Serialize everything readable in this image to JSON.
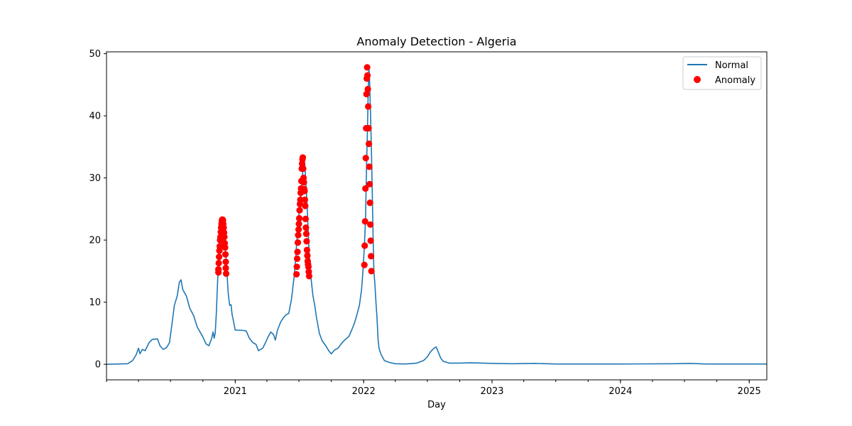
{
  "chart_data": {
    "type": "line",
    "title": "Anomaly Detection - Algeria",
    "xlabel": "Day",
    "ylabel": "",
    "xlim": [
      "2020-01-01",
      "2025-02-20"
    ],
    "ylim": [
      -2.5,
      50.3
    ],
    "x_ticks": [
      "2021-01-01",
      "2022-01-01",
      "2023-01-01",
      "2024-01-01",
      "2025-01-01"
    ],
    "x_tick_labels": [
      "2021",
      "2022",
      "2023",
      "2024",
      "2025"
    ],
    "y_ticks": [
      0,
      10,
      20,
      30,
      40,
      50
    ],
    "y_tick_labels": [
      "0",
      "10",
      "20",
      "30",
      "40",
      "50"
    ],
    "grid": false,
    "legend_position": "top-right",
    "legend": [
      {
        "label": "Normal",
        "kind": "line",
        "color": "#1f77b4"
      },
      {
        "label": "Anomaly",
        "kind": "marker",
        "color": "#ff0000"
      }
    ],
    "series": [
      {
        "name": "Normal",
        "kind": "line",
        "color": "#1f77b4",
        "points": [
          [
            "2020-01-01",
            0
          ],
          [
            "2020-03-01",
            0.1
          ],
          [
            "2020-03-15",
            0.6
          ],
          [
            "2020-03-25",
            1.5
          ],
          [
            "2020-04-01",
            2.6
          ],
          [
            "2020-04-05",
            1.7
          ],
          [
            "2020-04-12",
            2.4
          ],
          [
            "2020-04-20",
            2.2
          ],
          [
            "2020-05-01",
            3.5
          ],
          [
            "2020-05-10",
            4.0
          ],
          [
            "2020-05-25",
            4.1
          ],
          [
            "2020-06-01",
            3.0
          ],
          [
            "2020-06-10",
            2.4
          ],
          [
            "2020-06-20",
            2.7
          ],
          [
            "2020-06-28",
            3.5
          ],
          [
            "2020-07-05",
            6.5
          ],
          [
            "2020-07-12",
            9.5
          ],
          [
            "2020-07-20",
            11.0
          ],
          [
            "2020-07-26",
            13.2
          ],
          [
            "2020-07-31",
            13.6
          ],
          [
            "2020-08-05",
            12.0
          ],
          [
            "2020-08-15",
            11.0
          ],
          [
            "2020-08-25",
            9.0
          ],
          [
            "2020-09-05",
            7.8
          ],
          [
            "2020-09-15",
            6.0
          ],
          [
            "2020-09-30",
            4.5
          ],
          [
            "2020-10-10",
            3.3
          ],
          [
            "2020-10-18",
            3.0
          ],
          [
            "2020-10-25",
            4.0
          ],
          [
            "2020-10-30",
            5.2
          ],
          [
            "2020-11-02",
            4.2
          ],
          [
            "2020-11-05",
            5.0
          ],
          [
            "2020-11-08",
            8.0
          ],
          [
            "2020-11-13",
            15.0
          ],
          [
            "2020-11-16",
            17.5
          ],
          [
            "2020-11-20",
            20.5
          ],
          [
            "2020-11-24",
            23.0
          ],
          [
            "2020-11-27",
            23.3
          ],
          [
            "2020-12-01",
            22.0
          ],
          [
            "2020-12-04",
            19.0
          ],
          [
            "2020-12-08",
            15.0
          ],
          [
            "2020-12-12",
            11.5
          ],
          [
            "2020-12-16",
            9.5
          ],
          [
            "2020-12-20",
            9.6
          ],
          [
            "2020-12-23",
            8.0
          ],
          [
            "2020-12-25",
            7.5
          ],
          [
            "2021-01-01",
            5.5
          ],
          [
            "2021-01-15",
            5.5
          ],
          [
            "2021-02-01",
            5.4
          ],
          [
            "2021-02-10",
            4.2
          ],
          [
            "2021-02-20",
            3.5
          ],
          [
            "2021-03-01",
            3.2
          ],
          [
            "2021-03-08",
            2.2
          ],
          [
            "2021-03-20",
            2.6
          ],
          [
            "2021-03-28",
            3.5
          ],
          [
            "2021-04-05",
            4.5
          ],
          [
            "2021-04-12",
            5.2
          ],
          [
            "2021-04-20",
            4.8
          ],
          [
            "2021-04-25",
            3.9
          ],
          [
            "2021-05-01",
            5.5
          ],
          [
            "2021-05-10",
            6.8
          ],
          [
            "2021-05-18",
            7.5
          ],
          [
            "2021-05-26",
            8.0
          ],
          [
            "2021-06-02",
            8.2
          ],
          [
            "2021-06-10",
            10.5
          ],
          [
            "2021-06-18",
            14.5
          ],
          [
            "2021-06-22",
            17.5
          ],
          [
            "2021-06-26",
            20.5
          ],
          [
            "2021-06-30",
            23.5
          ],
          [
            "2021-07-04",
            26.0
          ],
          [
            "2021-07-08",
            28.0
          ],
          [
            "2021-07-12",
            31.0
          ],
          [
            "2021-07-15",
            33.3
          ],
          [
            "2021-07-18",
            32.0
          ],
          [
            "2021-07-21",
            29.0
          ],
          [
            "2021-07-24",
            26.0
          ],
          [
            "2021-07-27",
            22.0
          ],
          [
            "2021-07-30",
            18.0
          ],
          [
            "2021-08-02",
            15.0
          ],
          [
            "2021-08-06",
            13.0
          ],
          [
            "2021-08-10",
            11.0
          ],
          [
            "2021-08-15",
            9.5
          ],
          [
            "2021-08-20",
            7.5
          ],
          [
            "2021-08-28",
            5.0
          ],
          [
            "2021-09-05",
            3.8
          ],
          [
            "2021-09-15",
            3.0
          ],
          [
            "2021-09-25",
            2.1
          ],
          [
            "2021-10-01",
            1.7
          ],
          [
            "2021-10-10",
            2.3
          ],
          [
            "2021-10-20",
            2.6
          ],
          [
            "2021-11-01",
            3.5
          ],
          [
            "2021-11-10",
            4.0
          ],
          [
            "2021-11-20",
            4.5
          ],
          [
            "2021-11-28",
            5.5
          ],
          [
            "2021-12-05",
            6.5
          ],
          [
            "2021-12-12",
            7.8
          ],
          [
            "2021-12-20",
            9.5
          ],
          [
            "2021-12-26",
            12.0
          ],
          [
            "2021-12-30",
            15.0
          ],
          [
            "2022-01-03",
            19.0
          ],
          [
            "2022-01-06",
            23.0
          ],
          [
            "2022-01-08",
            28.5
          ],
          [
            "2022-01-10",
            33.5
          ],
          [
            "2022-01-12",
            38.0
          ],
          [
            "2022-01-14",
            44.0
          ],
          [
            "2022-01-16",
            47.8
          ],
          [
            "2022-01-18",
            45.5
          ],
          [
            "2022-01-20",
            41.5
          ],
          [
            "2022-01-22",
            37.0
          ],
          [
            "2022-01-24",
            32.0
          ],
          [
            "2022-01-26",
            26.0
          ],
          [
            "2022-01-28",
            20.0
          ],
          [
            "2022-01-30",
            15.0
          ],
          [
            "2022-02-02",
            13.0
          ],
          [
            "2022-02-05",
            10.0
          ],
          [
            "2022-02-08",
            7.5
          ],
          [
            "2022-02-11",
            4.0
          ],
          [
            "2022-02-14",
            2.5
          ],
          [
            "2022-02-20",
            1.5
          ],
          [
            "2022-03-01",
            0.6
          ],
          [
            "2022-03-15",
            0.3
          ],
          [
            "2022-04-01",
            0.1
          ],
          [
            "2022-05-01",
            0.05
          ],
          [
            "2022-06-01",
            0.2
          ],
          [
            "2022-06-20",
            0.6
          ],
          [
            "2022-07-01",
            1.2
          ],
          [
            "2022-07-10",
            2.0
          ],
          [
            "2022-07-20",
            2.6
          ],
          [
            "2022-07-26",
            2.8
          ],
          [
            "2022-08-01",
            2.0
          ],
          [
            "2022-08-08",
            1.0
          ],
          [
            "2022-08-15",
            0.5
          ],
          [
            "2022-09-01",
            0.2
          ],
          [
            "2022-10-01",
            0.2
          ],
          [
            "2022-11-01",
            0.25
          ],
          [
            "2023-01-01",
            0.15
          ],
          [
            "2023-03-01",
            0.1
          ],
          [
            "2023-05-01",
            0.15
          ],
          [
            "2023-07-01",
            0.05
          ],
          [
            "2024-01-01",
            0.05
          ],
          [
            "2024-06-01",
            0.1
          ],
          [
            "2024-07-15",
            0.15
          ],
          [
            "2024-09-01",
            0.05
          ],
          [
            "2025-02-20",
            0.05
          ]
        ]
      },
      {
        "name": "Anomaly",
        "kind": "scatter",
        "color": "#ff0000",
        "points": [
          [
            "2020-11-14",
            14.8
          ],
          [
            "2020-11-14",
            15.3
          ],
          [
            "2020-11-15",
            16.3
          ],
          [
            "2020-11-16",
            17.3
          ],
          [
            "2020-11-17",
            18.3
          ],
          [
            "2020-11-18",
            19.0
          ],
          [
            "2020-11-19",
            20.0
          ],
          [
            "2020-11-20",
            20.5
          ],
          [
            "2020-11-21",
            21.3
          ],
          [
            "2020-11-22",
            22.0
          ],
          [
            "2020-11-23",
            22.6
          ],
          [
            "2020-11-24",
            23.1
          ],
          [
            "2020-11-25",
            23.3
          ],
          [
            "2020-11-26",
            23.3
          ],
          [
            "2020-11-27",
            23.2
          ],
          [
            "2020-11-28",
            22.6
          ],
          [
            "2020-11-29",
            22.0
          ],
          [
            "2020-11-30",
            21.2
          ],
          [
            "2020-12-01",
            20.5
          ],
          [
            "2020-12-02",
            19.5
          ],
          [
            "2020-12-03",
            18.8
          ],
          [
            "2020-12-04",
            17.7
          ],
          [
            "2020-12-05",
            16.5
          ],
          [
            "2020-12-05",
            15.5
          ],
          [
            "2020-12-06",
            14.6
          ],
          [
            "2021-06-24",
            14.5
          ],
          [
            "2021-06-25",
            15.7
          ],
          [
            "2021-06-26",
            17.0
          ],
          [
            "2021-06-27",
            18.1
          ],
          [
            "2021-06-28",
            19.6
          ],
          [
            "2021-06-29",
            20.8
          ],
          [
            "2021-06-30",
            21.7
          ],
          [
            "2021-07-01",
            22.6
          ],
          [
            "2021-07-02",
            23.5
          ],
          [
            "2021-07-03",
            24.8
          ],
          [
            "2021-07-04",
            25.8
          ],
          [
            "2021-07-05",
            26.5
          ],
          [
            "2021-07-06",
            27.6
          ],
          [
            "2021-07-07",
            28.3
          ],
          [
            "2021-07-08",
            29.5
          ],
          [
            "2021-07-09",
            31.5
          ],
          [
            "2021-07-10",
            32.3
          ],
          [
            "2021-07-11",
            33.0
          ],
          [
            "2021-07-12",
            33.3
          ],
          [
            "2021-07-13",
            31.5
          ],
          [
            "2021-07-14",
            30.0
          ],
          [
            "2021-07-15",
            29.3
          ],
          [
            "2021-07-16",
            28.2
          ],
          [
            "2021-07-17",
            27.9
          ],
          [
            "2021-07-18",
            26.5
          ],
          [
            "2021-07-19",
            25.5
          ],
          [
            "2021-07-20",
            23.4
          ],
          [
            "2021-07-21",
            22.0
          ],
          [
            "2021-07-22",
            21.0
          ],
          [
            "2021-07-23",
            19.8
          ],
          [
            "2021-07-24",
            18.4
          ],
          [
            "2021-07-25",
            17.5
          ],
          [
            "2021-07-26",
            16.6
          ],
          [
            "2021-07-27",
            16.1
          ],
          [
            "2021-07-28",
            15.7
          ],
          [
            "2021-07-29",
            14.9
          ],
          [
            "2021-07-30",
            14.2
          ],
          [
            "2022-01-03",
            16.0
          ],
          [
            "2022-01-04",
            19.1
          ],
          [
            "2022-01-05",
            23.0
          ],
          [
            "2022-01-06",
            28.3
          ],
          [
            "2022-01-07",
            33.2
          ],
          [
            "2022-01-08",
            38.0
          ],
          [
            "2022-01-09",
            43.5
          ],
          [
            "2022-01-10",
            46.0
          ],
          [
            "2022-01-11",
            47.8
          ],
          [
            "2022-01-12",
            46.5
          ],
          [
            "2022-01-13",
            44.3
          ],
          [
            "2022-01-14",
            41.5
          ],
          [
            "2022-01-15",
            38.0
          ],
          [
            "2022-01-16",
            35.5
          ],
          [
            "2022-01-17",
            31.8
          ],
          [
            "2022-01-18",
            29.0
          ],
          [
            "2022-01-19",
            26.0
          ],
          [
            "2022-01-20",
            22.5
          ],
          [
            "2022-01-21",
            19.9
          ],
          [
            "2022-01-22",
            17.4
          ],
          [
            "2022-01-23",
            15.0
          ]
        ]
      }
    ]
  }
}
